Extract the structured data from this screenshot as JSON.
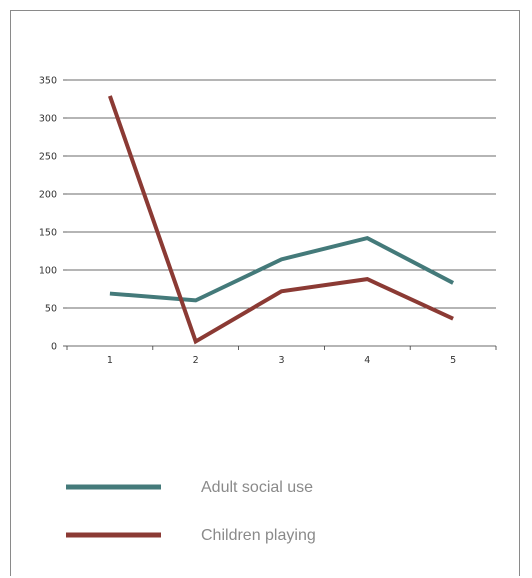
{
  "chart_data": {
    "type": "line",
    "title": "",
    "xlabel": "",
    "ylabel": "",
    "categories": [
      "1",
      "2",
      "3",
      "4",
      "5"
    ],
    "y_ticks": [
      "0",
      "50",
      "100",
      "150",
      "200",
      "250",
      "300",
      "350"
    ],
    "ylim": [
      0,
      350
    ],
    "grid": true,
    "legend_position": "bottom",
    "series": [
      {
        "name": "Adult social use",
        "color": "#447a7a",
        "values": [
          69,
          60,
          114,
          142,
          83
        ]
      },
      {
        "name": "Children playing",
        "color": "#8b3a34",
        "values": [
          329,
          6,
          72,
          88,
          36
        ]
      }
    ]
  }
}
